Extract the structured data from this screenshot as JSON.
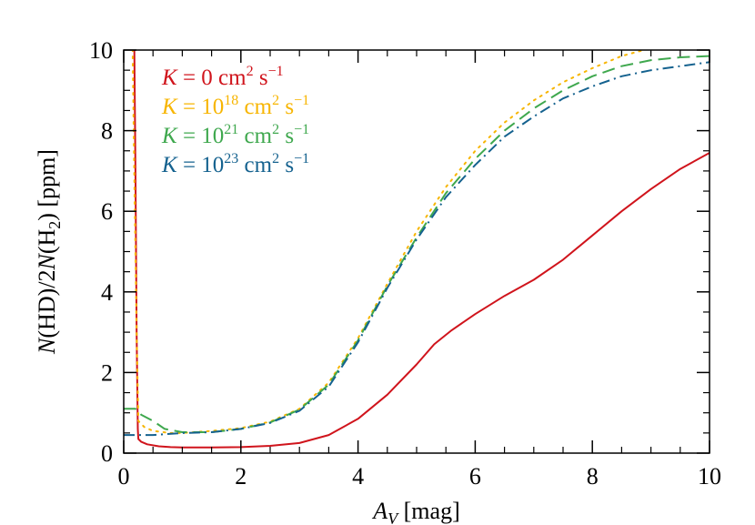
{
  "chart_data": {
    "type": "line",
    "title": "",
    "xlabel": {
      "italic": "A",
      "sub": "V",
      "rest": " [mag]"
    },
    "ylabel": {
      "n1": "N",
      "a": "(HD)/2",
      "n2": "N",
      "b": "(H",
      "sub": "2",
      "c": ")  [ppm]"
    },
    "xlim": [
      0,
      10
    ],
    "ylim": [
      0,
      10
    ],
    "x_ticks": [
      {
        "v": 0,
        "label": "0"
      },
      {
        "v": 2,
        "label": "2"
      },
      {
        "v": 4,
        "label": "4"
      },
      {
        "v": 6,
        "label": "6"
      },
      {
        "v": 8,
        "label": "8"
      },
      {
        "v": 10,
        "label": "10"
      }
    ],
    "y_ticks": [
      {
        "v": 0,
        "label": "0"
      },
      {
        "v": 2,
        "label": "2"
      },
      {
        "v": 4,
        "label": "4"
      },
      {
        "v": 6,
        "label": "6"
      },
      {
        "v": 8,
        "label": "8"
      },
      {
        "v": 10,
        "label": "10"
      }
    ],
    "grid": false,
    "legend_position": "top-left",
    "series": [
      {
        "name": "K = 0 cm2 s-1",
        "legend": {
          "k": "K",
          "eq": " = 0 cm",
          "sup1": "2",
          "s": " s",
          "sup2": "−1"
        },
        "color": "#d0141c",
        "dash": "solid",
        "points": [
          [
            0.18,
            10.2
          ],
          [
            0.2,
            7
          ],
          [
            0.22,
            3
          ],
          [
            0.24,
            0.6
          ],
          [
            0.25,
            0.35
          ],
          [
            0.3,
            0.28
          ],
          [
            0.4,
            0.22
          ],
          [
            0.6,
            0.17
          ],
          [
            0.8,
            0.15
          ],
          [
            1,
            0.14
          ],
          [
            1.5,
            0.14
          ],
          [
            2,
            0.15
          ],
          [
            2.5,
            0.18
          ],
          [
            3,
            0.25
          ],
          [
            3.5,
            0.45
          ],
          [
            4,
            0.85
          ],
          [
            4.5,
            1.45
          ],
          [
            5,
            2.2
          ],
          [
            5.3,
            2.7
          ],
          [
            5.6,
            3.05
          ],
          [
            6,
            3.45
          ],
          [
            6.5,
            3.9
          ],
          [
            7,
            4.3
          ],
          [
            7.5,
            4.8
          ],
          [
            8,
            5.4
          ],
          [
            8.5,
            6
          ],
          [
            9,
            6.55
          ],
          [
            9.5,
            7.05
          ],
          [
            10,
            7.45
          ]
        ]
      },
      {
        "name": "K = 10^18 cm2 s-1",
        "legend": {
          "k": "K",
          "eq": " = 10",
          "exp": "18",
          "cm": " cm",
          "sup1": "2",
          "s": " s",
          "sup2": "−1"
        },
        "color": "#f7b500",
        "dash": "dotted",
        "points": [
          [
            0.15,
            10.2
          ],
          [
            0.18,
            7
          ],
          [
            0.22,
            3
          ],
          [
            0.25,
            0.8
          ],
          [
            0.35,
            0.65
          ],
          [
            0.5,
            0.55
          ],
          [
            0.8,
            0.5
          ],
          [
            1,
            0.5
          ],
          [
            1.5,
            0.55
          ],
          [
            2,
            0.62
          ],
          [
            2.5,
            0.78
          ],
          [
            3,
            1.1
          ],
          [
            3.5,
            1.75
          ],
          [
            4,
            2.85
          ],
          [
            4.5,
            4.2
          ],
          [
            5,
            5.5
          ],
          [
            5.5,
            6.6
          ],
          [
            6,
            7.5
          ],
          [
            6.5,
            8.2
          ],
          [
            7,
            8.75
          ],
          [
            7.5,
            9.2
          ],
          [
            8,
            9.55
          ],
          [
            8.5,
            9.85
          ],
          [
            9,
            10.05
          ],
          [
            9.2,
            10.15
          ]
        ]
      },
      {
        "name": "K = 10^21 cm2 s-1",
        "legend": {
          "k": "K",
          "eq": " = 10",
          "exp": "21",
          "cm": " cm",
          "sup1": "2",
          "s": " s",
          "sup2": "−1"
        },
        "color": "#3fa84e",
        "dash": "dashed",
        "points": [
          [
            0,
            1.1
          ],
          [
            0.2,
            1.1
          ],
          [
            0.3,
            0.95
          ],
          [
            0.5,
            0.8
          ],
          [
            0.7,
            0.6
          ],
          [
            1,
            0.52
          ],
          [
            1.5,
            0.52
          ],
          [
            2,
            0.6
          ],
          [
            2.5,
            0.76
          ],
          [
            3,
            1.08
          ],
          [
            3.5,
            1.7
          ],
          [
            4,
            2.8
          ],
          [
            4.5,
            4.15
          ],
          [
            5,
            5.35
          ],
          [
            5.5,
            6.45
          ],
          [
            6,
            7.3
          ],
          [
            6.5,
            8
          ],
          [
            7,
            8.55
          ],
          [
            7.5,
            9
          ],
          [
            8,
            9.35
          ],
          [
            8.5,
            9.6
          ],
          [
            9,
            9.75
          ],
          [
            9.5,
            9.82
          ],
          [
            10,
            9.85
          ]
        ]
      },
      {
        "name": "K = 10^23 cm2 s-1",
        "legend": {
          "k": "K",
          "eq": " = 10",
          "exp": "23",
          "cm": " cm",
          "sup1": "2",
          "s": " s",
          "sup2": "−1"
        },
        "color": "#15628f",
        "dash": "dashdot",
        "points": [
          [
            0,
            0.45
          ],
          [
            0.5,
            0.45
          ],
          [
            1,
            0.5
          ],
          [
            1.5,
            0.52
          ],
          [
            2,
            0.6
          ],
          [
            2.5,
            0.75
          ],
          [
            3,
            1.05
          ],
          [
            3.5,
            1.65
          ],
          [
            4,
            2.75
          ],
          [
            4.5,
            4.1
          ],
          [
            5,
            5.3
          ],
          [
            5.5,
            6.35
          ],
          [
            6,
            7.15
          ],
          [
            6.5,
            7.85
          ],
          [
            7,
            8.35
          ],
          [
            7.5,
            8.8
          ],
          [
            8,
            9.1
          ],
          [
            8.5,
            9.35
          ],
          [
            9,
            9.5
          ],
          [
            9.5,
            9.6
          ],
          [
            10,
            9.7
          ]
        ]
      }
    ]
  }
}
